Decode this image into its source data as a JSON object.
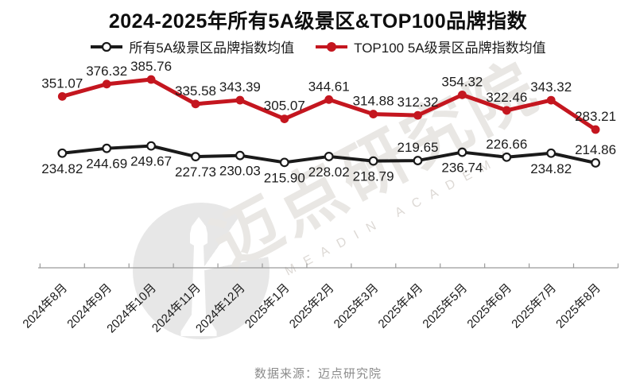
{
  "title": "2024-2025年所有5A级景区&TOP100品牌指数",
  "source": "数据来源：迈点研究院",
  "watermark": {
    "cn": "迈点研究院",
    "en": "MEADIN ACADEMY"
  },
  "colors": {
    "black_series": "#1a1a1a",
    "red_series": "#c4161f",
    "axis": "#9a9a9a",
    "label": "#1c1c1c",
    "source_text": "#8c8c8c"
  },
  "legend": [
    {
      "label": "所有5A级景区品牌指数均值",
      "color": "#1a1a1a",
      "marker": "open-circle"
    },
    {
      "label": "TOP100 5A级景区品牌指数均值",
      "color": "#c4161f",
      "marker": "filled-circle"
    }
  ],
  "chart_data": {
    "type": "line",
    "title": "2024-2025年所有5A级景区&TOP100品牌指数",
    "categories": [
      "2024年8月",
      "2024年9月",
      "2024年10月",
      "2024年11月",
      "2024年12月",
      "2025年1月",
      "2025年2月",
      "2025年3月",
      "2025年4月",
      "2025年5月",
      "2025年6月",
      "2025年7月",
      "2025年8月"
    ],
    "series": [
      {
        "name": "所有5A级景区品牌指数均值",
        "color": "#1a1a1a",
        "marker": "open-circle",
        "line_width": 4,
        "values": [
          234.82,
          244.69,
          249.67,
          227.73,
          230.03,
          215.9,
          228.02,
          218.79,
          219.65,
          236.74,
          226.66,
          234.82,
          214.86
        ],
        "label_side": [
          "below",
          "below",
          "below",
          "below",
          "below",
          "below",
          "below",
          "below",
          "above",
          "below",
          "above",
          "below",
          "above"
        ]
      },
      {
        "name": "TOP100 5A级景区品牌指数均值",
        "color": "#c4161f",
        "marker": "filled-circle",
        "line_width": 5,
        "values": [
          351.07,
          376.32,
          385.76,
          335.58,
          343.39,
          305.07,
          344.61,
          314.88,
          312.32,
          354.32,
          322.46,
          343.32,
          283.21
        ],
        "label_side": [
          "above",
          "above",
          "above",
          "above",
          "above",
          "above",
          "above",
          "above",
          "above",
          "above",
          "above",
          "above",
          "above"
        ]
      }
    ],
    "ylim": [
      0,
      420
    ],
    "grid": false,
    "data_labels": true,
    "legend_position": "top",
    "x_axis": {
      "visible": true,
      "ticks": 14,
      "label_rotation": -45
    },
    "y_axis": {
      "visible": false
    }
  }
}
